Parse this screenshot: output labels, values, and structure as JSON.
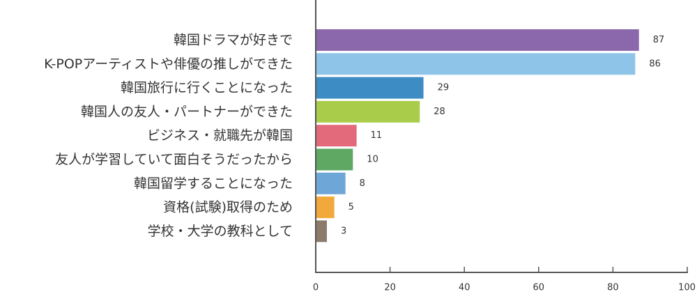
{
  "chart_data": {
    "type": "bar",
    "orientation": "horizontal",
    "categories": [
      "韓国ドラマが好きで",
      "K-POPアーティストや俳優の推しができた",
      "韓国旅行に行くことになった",
      "韓国人の友人・パートナーができた",
      "ビジネス・就職先が韓国",
      "友人が学習していて面白そうだったから",
      "韓国留学することになった",
      "資格(試験)取得のため",
      "学校・大学の教科として"
    ],
    "values": [
      87,
      86,
      29,
      28,
      11,
      10,
      8,
      5,
      3
    ],
    "value_labels": [
      "87",
      "86",
      "29",
      "28",
      "11",
      "10",
      "8",
      "5",
      "3"
    ],
    "colors": [
      "#8b68ab",
      "#8ec4e8",
      "#3d8cc4",
      "#a9cd4b",
      "#e26a7a",
      "#5ea864",
      "#6fa6d8",
      "#f2a93b",
      "#8c7b6b"
    ],
    "xlim": [
      0,
      100
    ],
    "xticks": [
      0,
      20,
      40,
      60,
      80,
      100
    ],
    "xtick_labels": [
      "0",
      "20",
      "40",
      "60",
      "80",
      "100"
    ],
    "title": "",
    "xlabel": "",
    "ylabel": "",
    "grid": false,
    "legend": "none"
  }
}
